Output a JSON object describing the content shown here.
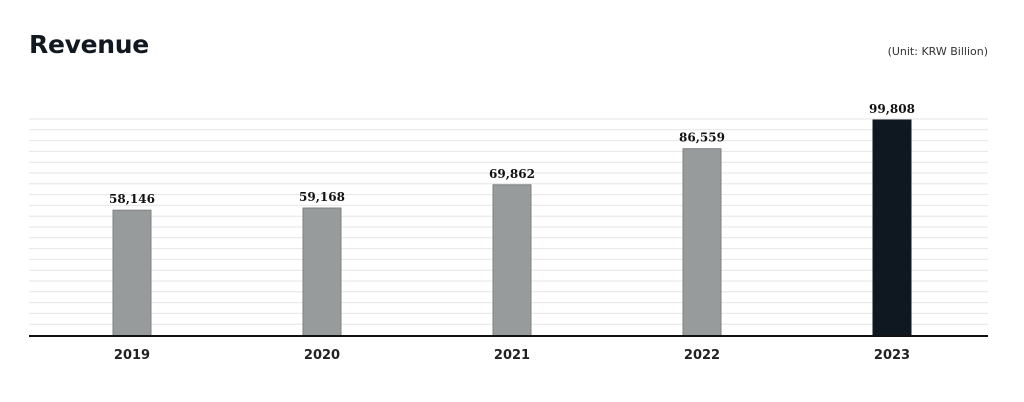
{
  "header": {
    "title": "Revenue",
    "unit": "(Unit: KRW Billion)"
  },
  "chart_data": {
    "type": "bar",
    "title": "Revenue",
    "categories": [
      "2019",
      "2020",
      "2021",
      "2022",
      "2023"
    ],
    "values": [
      58146,
      59168,
      69862,
      86559,
      99808
    ],
    "value_labels": [
      "58,146",
      "59,168",
      "69,862",
      "86,559",
      "99,808"
    ],
    "ylim": [
      0,
      100000
    ],
    "grid": true,
    "legend": "none",
    "colors": {
      "bar": "#989b9b",
      "bar_border": "#7d8080",
      "highlight_bar": "#0f1820",
      "grid": "#e6e6e6",
      "axis": "#111111"
    },
    "highlight_index": 4
  }
}
